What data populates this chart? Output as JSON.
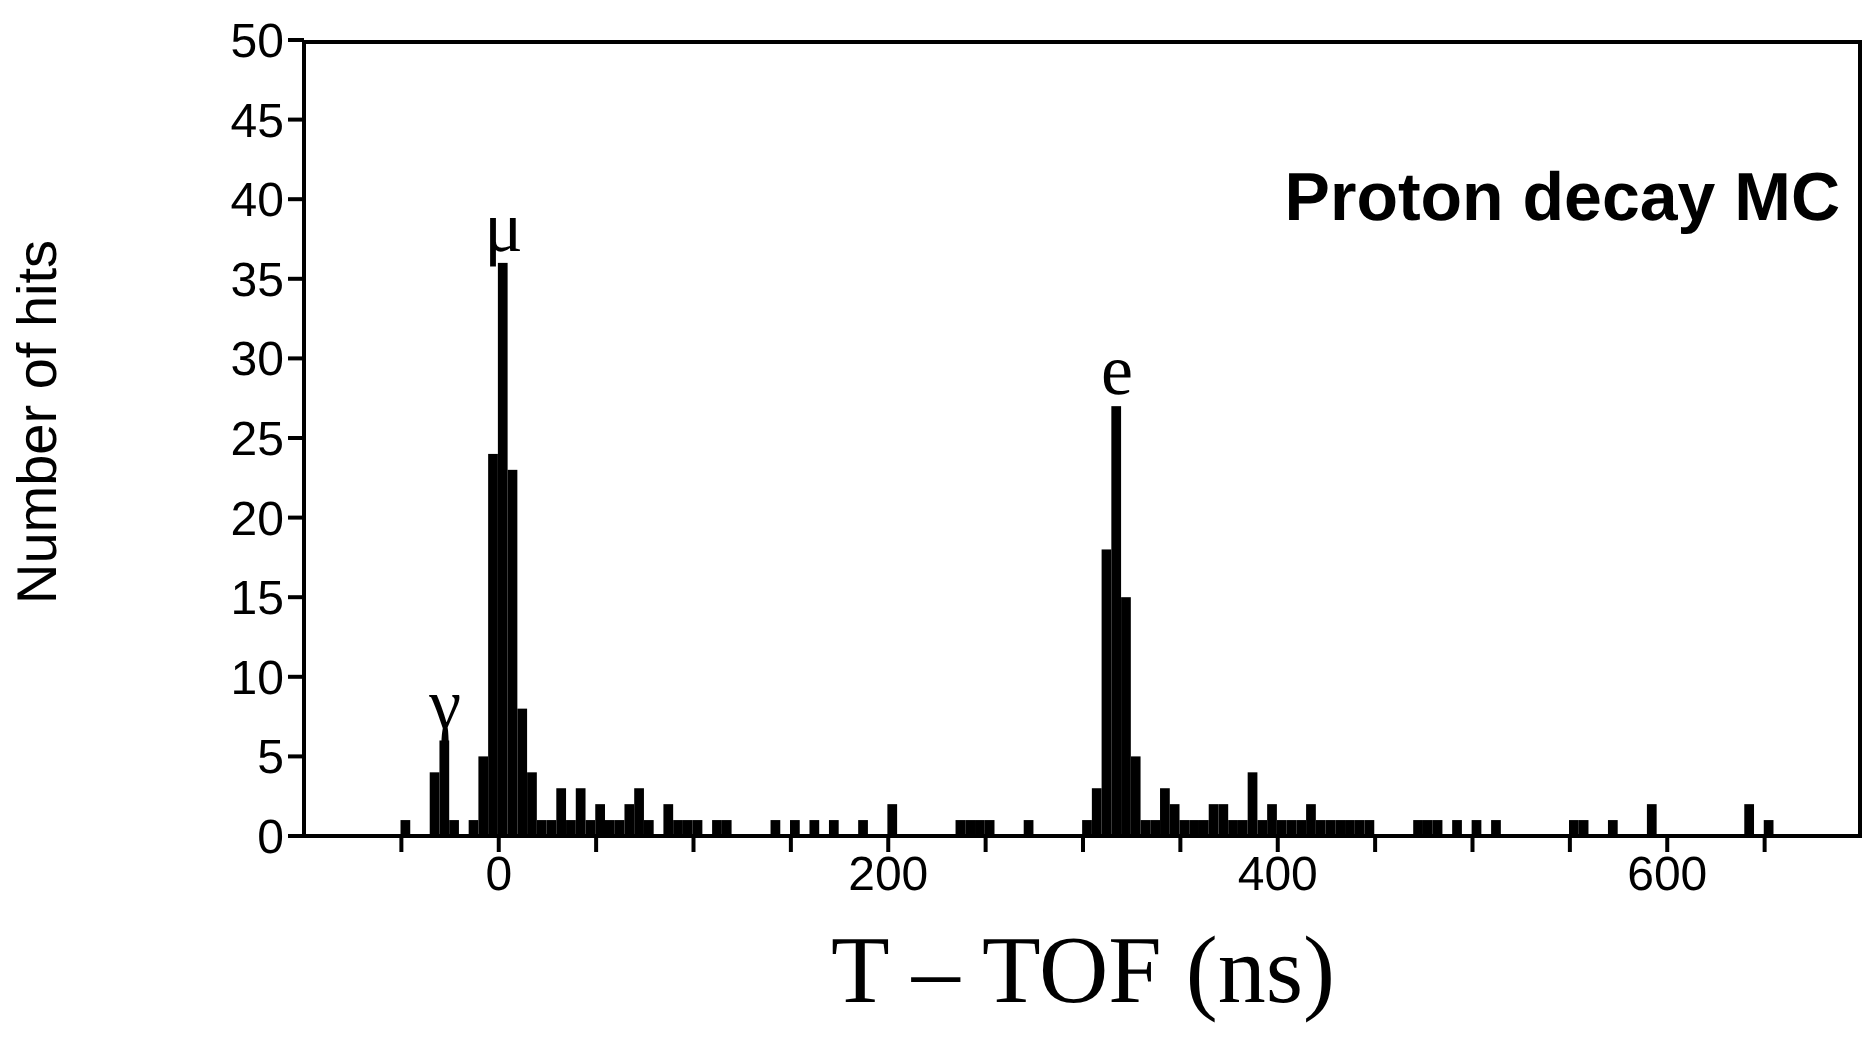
{
  "chart_data": {
    "type": "histogram",
    "xlabel": "T – TOF (ns)",
    "ylabel": "Number of hits",
    "color": "#000000",
    "bins": [
      -100,
      -95,
      -90,
      -85,
      -80,
      -75,
      -70,
      -65,
      -60,
      -55,
      -50,
      -45,
      -40,
      -35,
      -30,
      -25,
      -20,
      -15,
      -10,
      -5,
      0,
      5,
      10,
      15,
      20,
      25,
      30,
      35,
      40,
      45,
      50,
      55,
      60,
      65,
      70,
      75,
      80,
      85,
      90,
      95,
      100,
      105,
      110,
      115,
      120,
      125,
      130,
      135,
      140,
      145,
      150,
      155,
      160,
      165,
      170,
      175,
      180,
      185,
      190,
      195,
      200,
      205,
      210,
      215,
      220,
      225,
      230,
      235,
      240,
      245,
      250,
      255,
      260,
      265,
      270,
      275,
      280,
      285,
      290,
      295,
      300,
      305,
      310,
      315,
      320,
      325,
      330,
      335,
      340,
      345,
      350,
      355,
      360,
      365,
      370,
      375,
      380,
      385,
      390,
      395,
      400,
      405,
      410,
      415,
      420,
      425,
      430,
      435,
      440,
      445,
      450,
      455,
      460,
      465,
      470,
      475,
      480,
      485,
      490,
      495,
      500,
      505,
      510,
      515,
      520,
      525,
      530,
      535,
      540,
      545,
      550,
      555,
      560,
      565,
      570,
      575,
      580,
      585,
      590,
      595,
      600,
      605,
      610,
      615,
      620,
      625,
      630,
      635,
      640,
      645,
      650,
      655,
      660,
      665,
      670,
      675,
      680,
      685,
      690,
      695,
      700
    ],
    "values": [
      0,
      0,
      0,
      0,
      0,
      0,
      0,
      0,
      0,
      0,
      1,
      0,
      0,
      4,
      6,
      1,
      0,
      1,
      5,
      24,
      36,
      23,
      8,
      4,
      1,
      1,
      3,
      1,
      3,
      1,
      2,
      1,
      1,
      2,
      3,
      1,
      0,
      2,
      1,
      1,
      1,
      0,
      1,
      1,
      0,
      0,
      0,
      0,
      1,
      0,
      1,
      0,
      1,
      0,
      1,
      0,
      0,
      1,
      0,
      0,
      2,
      0,
      0,
      0,
      0,
      0,
      0,
      1,
      1,
      1,
      1,
      0,
      0,
      0,
      1,
      0,
      0,
      0,
      0,
      0,
      1,
      3,
      18,
      27,
      15,
      5,
      1,
      1,
      3,
      2,
      1,
      1,
      1,
      2,
      2,
      1,
      1,
      4,
      1,
      2,
      1,
      1,
      1,
      2,
      1,
      1,
      1,
      1,
      1,
      1,
      0,
      0,
      0,
      0,
      1,
      1,
      1,
      0,
      1,
      0,
      1,
      0,
      1,
      0,
      0,
      0,
      0,
      0,
      0,
      0,
      1,
      1,
      0,
      0,
      1,
      0,
      0,
      0,
      2,
      0,
      0,
      0,
      0,
      0,
      0,
      0,
      0,
      0,
      2,
      0,
      1,
      0,
      0,
      0,
      0,
      0,
      0,
      0,
      0,
      0
    ],
    "xlim": [
      -100,
      700
    ],
    "xticks": [
      {
        "value": -50,
        "label": null
      },
      0,
      {
        "value": 50,
        "label": null
      },
      {
        "value": 100,
        "label": null
      },
      {
        "value": 150,
        "label": null
      },
      200,
      {
        "value": 250,
        "label": null
      },
      {
        "value": 300,
        "label": null
      },
      {
        "value": 350,
        "label": null
      },
      400,
      {
        "value": 450,
        "label": null
      },
      {
        "value": 500,
        "label": null
      },
      {
        "value": 550,
        "label": null
      },
      600,
      {
        "value": 650,
        "label": null
      }
    ],
    "ylim": [
      0,
      50
    ],
    "yticks": [
      0,
      5,
      10,
      15,
      20,
      25,
      30,
      35,
      40,
      45,
      50
    ],
    "annotations": [
      {
        "text": "γ",
        "x": -27.5,
        "y": 6
      },
      {
        "text": "μ",
        "x": 2.5,
        "y": 36
      },
      {
        "text": "e",
        "x": 317.5,
        "y": 27
      },
      "Proton decay MC"
    ]
  }
}
